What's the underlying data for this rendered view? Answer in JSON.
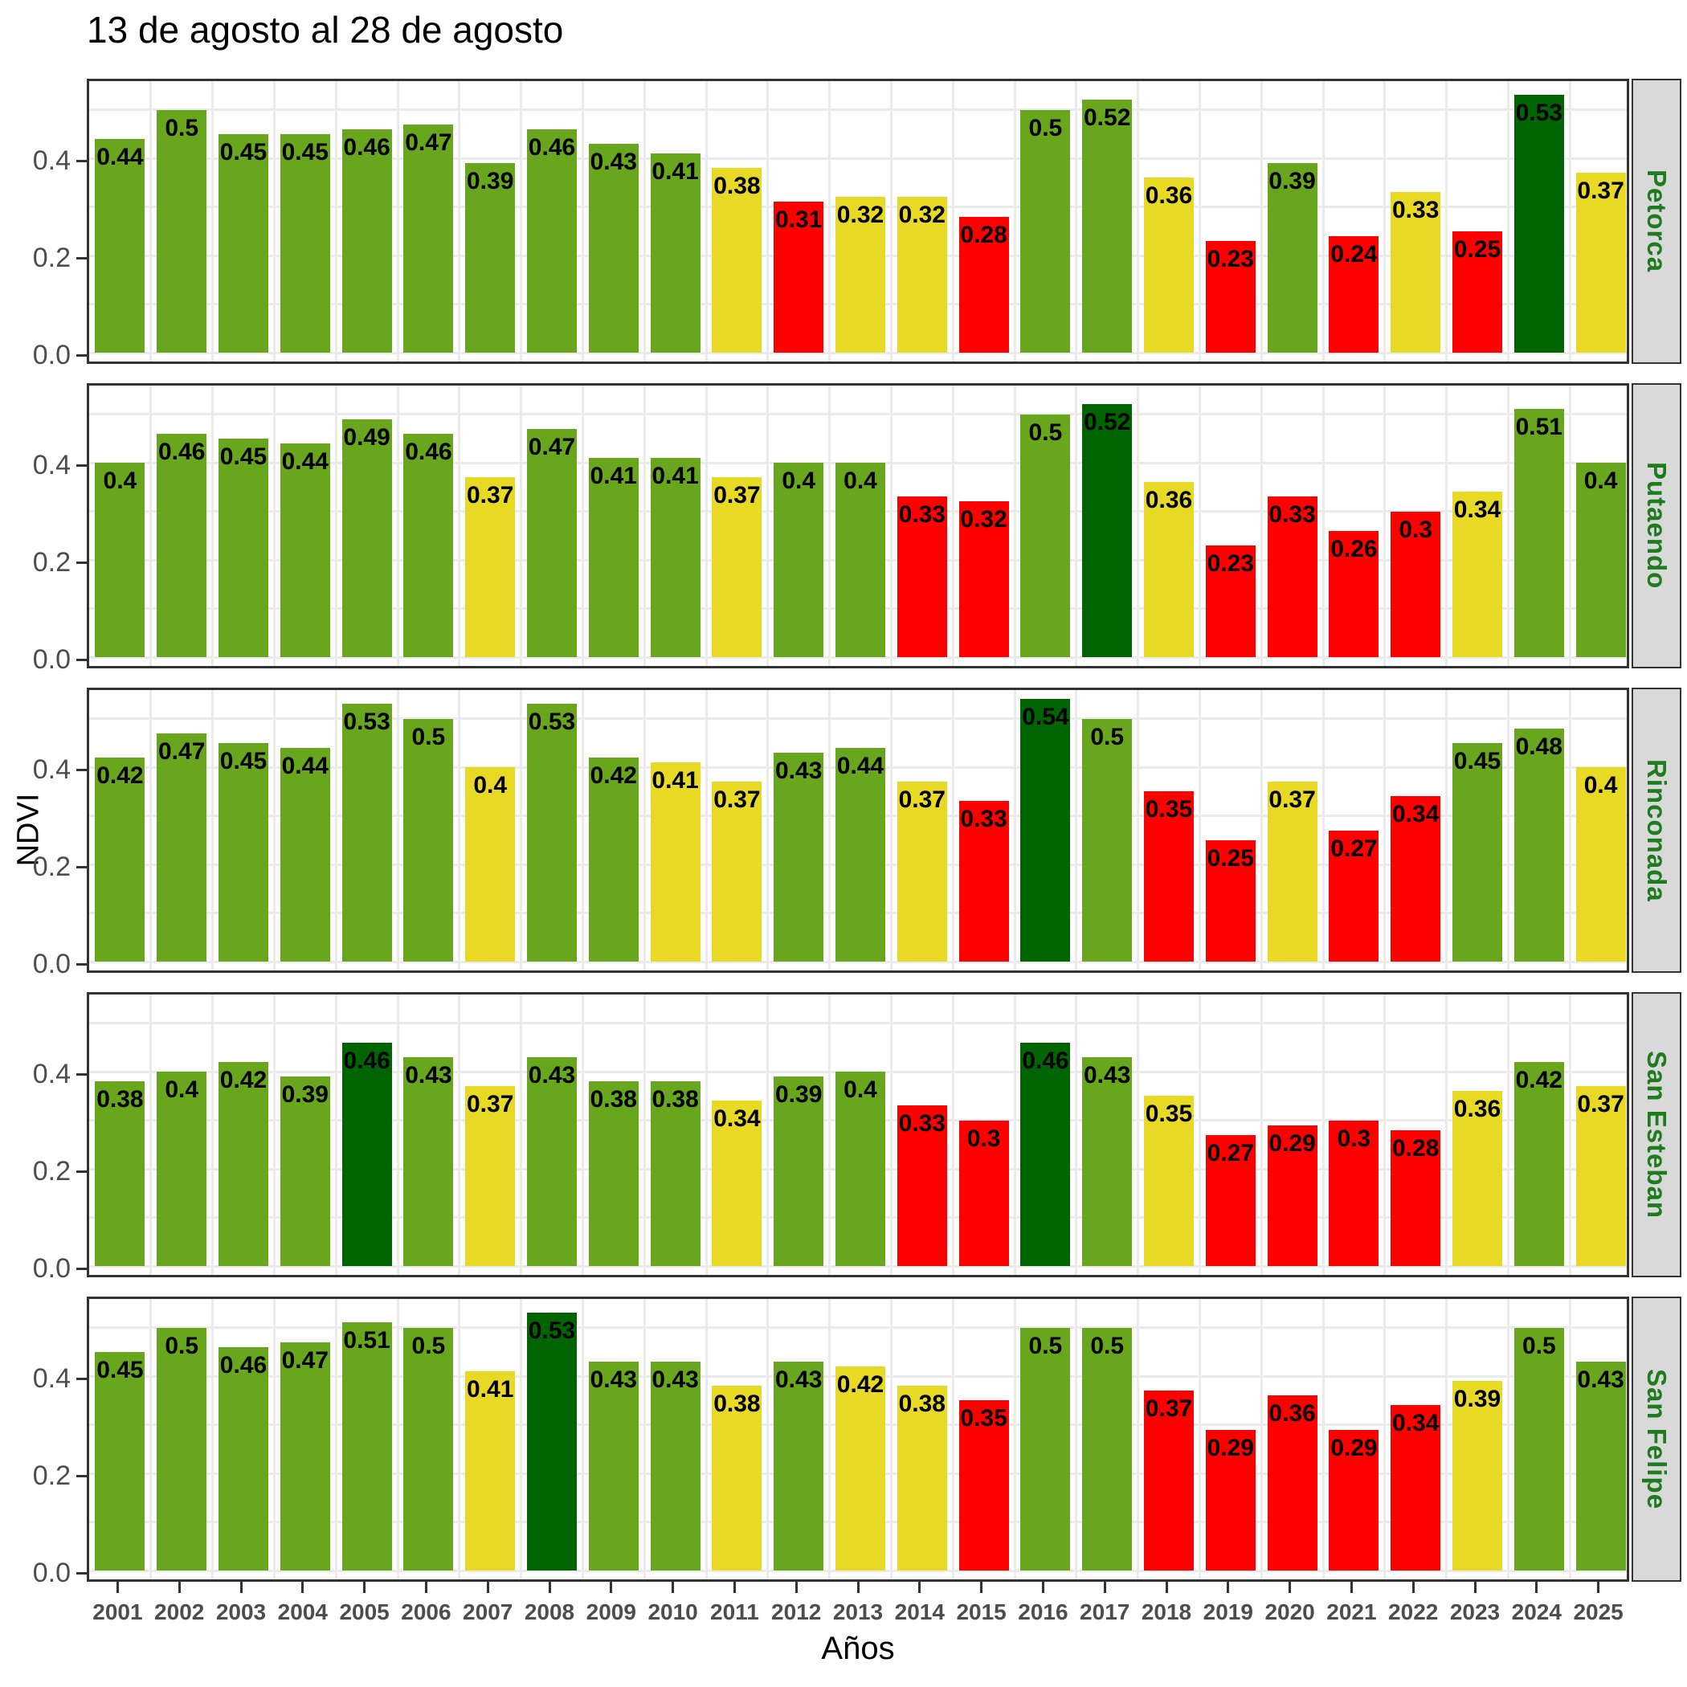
{
  "chart_data": {
    "type": "bar",
    "title": "13 de agosto al 28 de agosto",
    "xlabel": "Años",
    "ylabel": "NDVI",
    "x": [
      2001,
      2002,
      2003,
      2004,
      2005,
      2006,
      2007,
      2008,
      2009,
      2010,
      2011,
      2012,
      2013,
      2014,
      2015,
      2016,
      2017,
      2018,
      2019,
      2020,
      2021,
      2022,
      2023,
      2024,
      2025
    ],
    "ylim": [
      0,
      0.58
    ],
    "y_ticks": [
      0.0,
      0.2,
      0.4
    ],
    "grid": true,
    "legend_position": "none",
    "facet_side": "right",
    "facets": [
      {
        "name": "Petorca",
        "values": [
          0.44,
          0.5,
          0.45,
          0.45,
          0.46,
          0.47,
          0.39,
          0.46,
          0.43,
          0.41,
          0.38,
          0.31,
          0.32,
          0.32,
          0.28,
          0.5,
          0.52,
          0.36,
          0.23,
          0.39,
          0.24,
          0.33,
          0.25,
          0.53,
          0.37
        ],
        "levels": [
          "green",
          "green",
          "green",
          "green",
          "green",
          "green",
          "green",
          "green",
          "green",
          "green",
          "yellow",
          "red",
          "yellow",
          "yellow",
          "red",
          "green",
          "green",
          "yellow",
          "red",
          "green",
          "red",
          "yellow",
          "red",
          "dark_green",
          "yellow"
        ]
      },
      {
        "name": "Putaendo",
        "values": [
          0.4,
          0.46,
          0.45,
          0.44,
          0.49,
          0.46,
          0.37,
          0.47,
          0.41,
          0.41,
          0.37,
          0.4,
          0.4,
          0.33,
          0.32,
          0.5,
          0.52,
          0.36,
          0.23,
          0.33,
          0.26,
          0.3,
          0.34,
          0.51,
          0.4
        ],
        "levels": [
          "green",
          "green",
          "green",
          "green",
          "green",
          "green",
          "yellow",
          "green",
          "green",
          "green",
          "yellow",
          "green",
          "green",
          "red",
          "red",
          "green",
          "dark_green",
          "yellow",
          "red",
          "red",
          "red",
          "red",
          "yellow",
          "green",
          "green"
        ]
      },
      {
        "name": "Rinconada",
        "values": [
          0.42,
          0.47,
          0.45,
          0.44,
          0.53,
          0.5,
          0.4,
          0.53,
          0.42,
          0.41,
          0.37,
          0.43,
          0.44,
          0.37,
          0.33,
          0.54,
          0.5,
          0.35,
          0.25,
          0.37,
          0.27,
          0.34,
          0.45,
          0.48,
          0.4
        ],
        "levels": [
          "green",
          "green",
          "green",
          "green",
          "green",
          "green",
          "yellow",
          "green",
          "green",
          "yellow",
          "yellow",
          "green",
          "green",
          "yellow",
          "red",
          "dark_green",
          "green",
          "red",
          "red",
          "yellow",
          "red",
          "red",
          "green",
          "green",
          "yellow"
        ]
      },
      {
        "name": "San Esteban",
        "values": [
          0.38,
          0.4,
          0.42,
          0.39,
          0.46,
          0.43,
          0.37,
          0.43,
          0.38,
          0.38,
          0.34,
          0.39,
          0.4,
          0.33,
          0.3,
          0.46,
          0.43,
          0.35,
          0.27,
          0.29,
          0.3,
          0.28,
          0.36,
          0.42,
          0.37
        ],
        "levels": [
          "green",
          "green",
          "green",
          "green",
          "dark_green",
          "green",
          "yellow",
          "green",
          "green",
          "green",
          "yellow",
          "green",
          "green",
          "red",
          "red",
          "dark_green",
          "green",
          "yellow",
          "red",
          "red",
          "red",
          "red",
          "yellow",
          "green",
          "yellow"
        ]
      },
      {
        "name": "San Felipe",
        "values": [
          0.45,
          0.5,
          0.46,
          0.47,
          0.51,
          0.5,
          0.41,
          0.53,
          0.43,
          0.43,
          0.38,
          0.43,
          0.42,
          0.38,
          0.35,
          0.5,
          0.5,
          0.37,
          0.29,
          0.36,
          0.29,
          0.34,
          0.39,
          0.5,
          0.43
        ],
        "levels": [
          "green",
          "green",
          "green",
          "green",
          "green",
          "green",
          "yellow",
          "dark_green",
          "green",
          "green",
          "yellow",
          "green",
          "yellow",
          "yellow",
          "red",
          "green",
          "green",
          "red",
          "red",
          "red",
          "red",
          "red",
          "yellow",
          "green",
          "green"
        ]
      }
    ],
    "color_map": {
      "green": "#68A61E",
      "dark_green": "#006400",
      "yellow": "#E8D924",
      "red": "#FF0000"
    },
    "style_colors": {
      "strip_background": "#D9D9D9",
      "strip_text": "#1E7B1E",
      "gridline": "#EBEBEB",
      "panel_border": "#333333",
      "axis_text": "#4D4D4D",
      "label_text": "#000000"
    }
  }
}
